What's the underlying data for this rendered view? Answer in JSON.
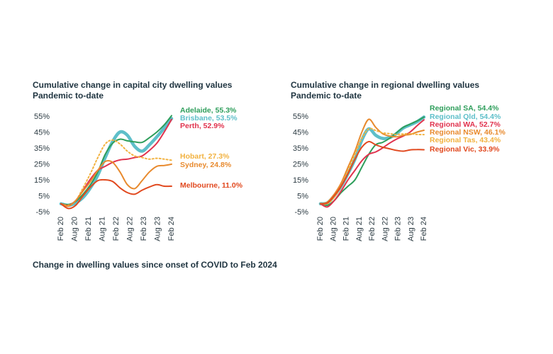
{
  "caption": "Change in dwelling values since onset of COVID to Feb 2024",
  "chart_data": [
    {
      "type": "line",
      "title": "Cumulative change in capital city dwelling values",
      "subtitle": "Pandemic to-date",
      "xlabel": "",
      "ylabel": "",
      "x_ticks": [
        "Feb 20",
        "Aug 20",
        "Feb 21",
        "Aug 21",
        "Feb 22",
        "Aug 22",
        "Feb 23",
        "Aug 23",
        "Feb 24"
      ],
      "y_ticks": [
        "55%",
        "45%",
        "35%",
        "25%",
        "15%",
        "5%",
        "-5%"
      ],
      "ylim": [
        -5,
        55
      ],
      "grid": false,
      "legend": "end-of-line labels",
      "series": [
        {
          "name": "Adelaide",
          "end_label": "Adelaide, 55.3%",
          "color": "#2e9e5b",
          "style": "solid",
          "values": [
            0,
            -0.5,
            1.5,
            6,
            12,
            20,
            31,
            38,
            40.5,
            39.5,
            38.8,
            38.5,
            41.5,
            45,
            49.5,
            55.3
          ]
        },
        {
          "name": "Brisbane",
          "end_label": "Brisbane, 53.5%",
          "color": "#5ebfc9",
          "style": "thick",
          "values": [
            0,
            -1,
            0.5,
            4,
            10,
            18,
            29,
            39,
            45,
            43,
            36,
            33,
            37,
            42,
            47.5,
            53.5
          ]
        },
        {
          "name": "Perth",
          "end_label": "Perth, 52.9%",
          "color": "#e0334e",
          "style": "solid",
          "values": [
            0,
            -1,
            2,
            8.5,
            15.5,
            21,
            23.5,
            26,
            27.5,
            28,
            29,
            30,
            33.5,
            38,
            45,
            52.9
          ]
        },
        {
          "name": "Hobart",
          "end_label": "Hobart, 27.3%",
          "color": "#f2b240",
          "style": "dotted",
          "values": [
            0,
            -1,
            2,
            10,
            19,
            29,
            37.5,
            40,
            37.5,
            33,
            30,
            29,
            28,
            28.5,
            28,
            27.3
          ]
        },
        {
          "name": "Sydney",
          "end_label": "Sydney, 24.8%",
          "color": "#e88a2e",
          "style": "solid",
          "values": [
            0,
            -1.5,
            2,
            8,
            14,
            21,
            26.5,
            26,
            20,
            12,
            9.5,
            14.5,
            20,
            23.5,
            24,
            24.8
          ]
        },
        {
          "name": "Melbourne",
          "end_label": "Melbourne, 11.0%",
          "color": "#e1491f",
          "style": "solid",
          "values": [
            0,
            -3,
            -1,
            5,
            10.5,
            14.5,
            15,
            14,
            10,
            7,
            6,
            8.5,
            10.5,
            12,
            11,
            11.0
          ]
        }
      ]
    },
    {
      "type": "line",
      "title": "Cumulative change in regional dwelling values",
      "subtitle": "Pandemic to-date",
      "xlabel": "",
      "ylabel": "",
      "x_ticks": [
        "Feb 20",
        "Aug 20",
        "Feb 21",
        "Aug 21",
        "Feb 22",
        "Aug 22",
        "Feb 23",
        "Aug 23",
        "Feb 24"
      ],
      "y_ticks": [
        "55%",
        "45%",
        "35%",
        "25%",
        "15%",
        "5%",
        "-5%"
      ],
      "ylim": [
        -5,
        55
      ],
      "grid": false,
      "legend": "end-of-line labels",
      "series": [
        {
          "name": "Regional SA",
          "end_label": "Regional SA, 54.4%",
          "color": "#2e9e5b",
          "style": "solid",
          "values": [
            0,
            -1,
            2,
            7,
            11,
            15,
            23,
            31,
            37,
            38.5,
            41,
            44.5,
            48,
            50,
            52,
            54.4
          ]
        },
        {
          "name": "Regional Qld",
          "end_label": "Regional Qld, 54.4%",
          "color": "#5ebfc9",
          "style": "thick",
          "values": [
            0,
            0.5,
            5,
            11,
            19,
            28,
            40,
            47,
            43,
            41,
            41.5,
            44,
            47.5,
            49.5,
            51.5,
            54.4
          ]
        },
        {
          "name": "Regional WA",
          "end_label": "Regional WA, 52.7%",
          "color": "#e0334e",
          "style": "solid",
          "values": [
            0,
            -2,
            2,
            8,
            15,
            21,
            27,
            31,
            32.5,
            35,
            38,
            40.5,
            42.5,
            45,
            49,
            52.7
          ]
        },
        {
          "name": "Regional NSW",
          "end_label": "Regional NSW, 46.1%",
          "color": "#e88a2e",
          "style": "solid",
          "values": [
            0,
            1,
            6,
            13,
            23,
            33,
            45,
            53,
            48,
            44,
            42.5,
            42,
            43,
            43.5,
            45,
            46.1
          ]
        },
        {
          "name": "Regional Tas",
          "end_label": "Regional Tas, 43.4%",
          "color": "#f2b240",
          "style": "dotted",
          "values": [
            0,
            0,
            4,
            11,
            21,
            31,
            41,
            47,
            46,
            44.5,
            44,
            43.5,
            43.8,
            44,
            43.5,
            43.4
          ]
        },
        {
          "name": "Regional Vic",
          "end_label": "Regional Vic, 33.9%",
          "color": "#e1491f",
          "style": "solid",
          "values": [
            0,
            0.5,
            5,
            11,
            19,
            28,
            35.5,
            39,
            37,
            35.5,
            34.5,
            33.5,
            33,
            33.8,
            34,
            33.9
          ]
        }
      ]
    }
  ]
}
